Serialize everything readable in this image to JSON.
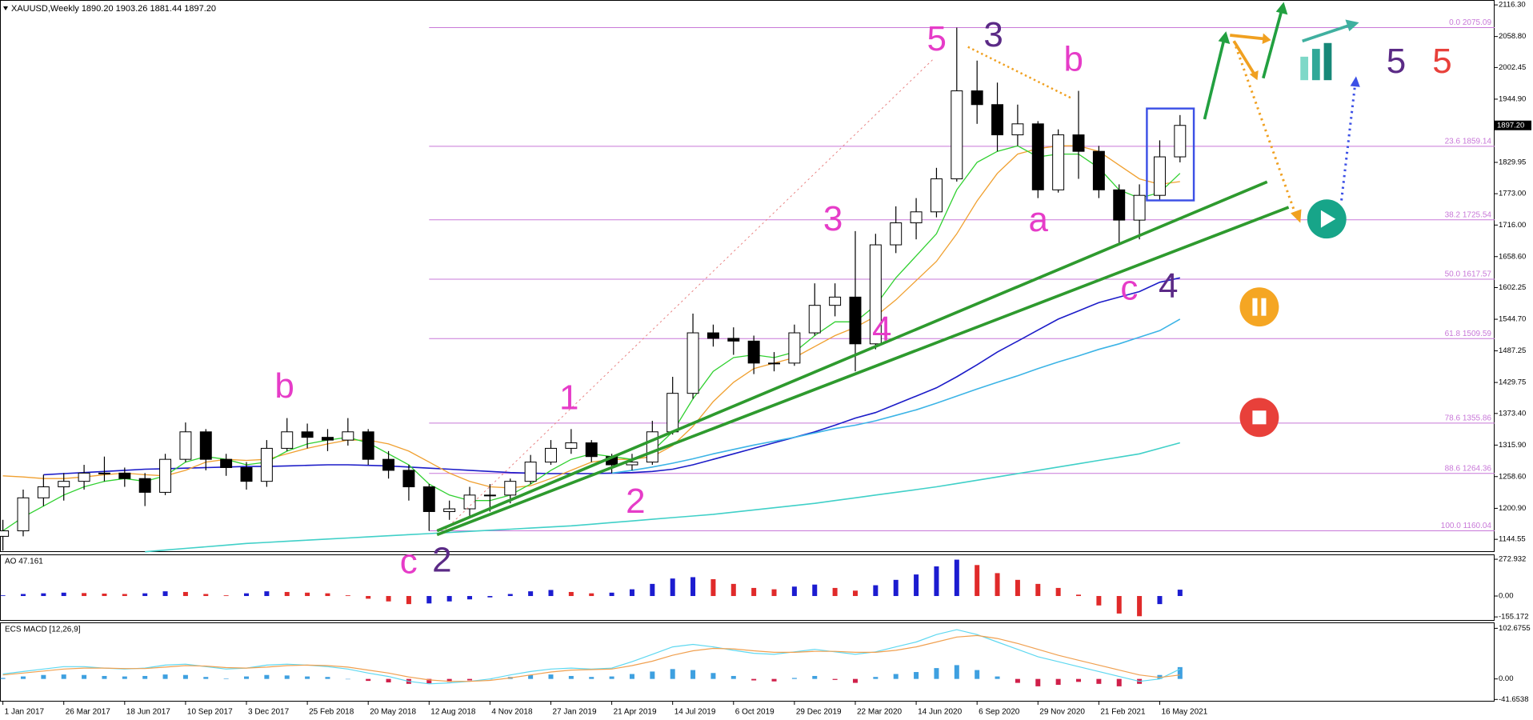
{
  "chart_data": {
    "type": "candlestick",
    "title": "XAUUSD,Weekly  1890.20 1903.26 1881.44 1897.20",
    "x": [
      "2017-01-01",
      "2017-01-29",
      "2017-02-26",
      "2017-03-26",
      "2017-04-23",
      "2017-05-21",
      "2017-06-18",
      "2017-07-16",
      "2017-08-13",
      "2017-09-10",
      "2017-10-08",
      "2017-11-05",
      "2017-12-03",
      "2017-12-31",
      "2018-01-28",
      "2018-02-25",
      "2018-03-25",
      "2018-04-22",
      "2018-05-20",
      "2018-06-17",
      "2018-07-15",
      "2018-08-12",
      "2018-09-09",
      "2018-10-07",
      "2018-11-04",
      "2018-12-02",
      "2018-12-30",
      "2019-01-27",
      "2019-02-24",
      "2019-03-24",
      "2019-04-21",
      "2019-05-19",
      "2019-06-16",
      "2019-07-14",
      "2019-08-11",
      "2019-09-08",
      "2019-10-06",
      "2019-11-03",
      "2019-12-01",
      "2019-12-29",
      "2020-01-26",
      "2020-02-23",
      "2020-03-22",
      "2020-04-19",
      "2020-05-17",
      "2020-06-14",
      "2020-07-12",
      "2020-08-09",
      "2020-09-06",
      "2020-10-04",
      "2020-11-01",
      "2020-11-29",
      "2020-12-27",
      "2021-01-24",
      "2021-02-21",
      "2021-03-21",
      "2021-04-18",
      "2021-05-16",
      "2021-06-13"
    ],
    "open": [
      1150,
      1160,
      1220,
      1240,
      1250,
      1265,
      1265,
      1255,
      1230,
      1290,
      1340,
      1290,
      1275,
      1250,
      1310,
      1340,
      1330,
      1325,
      1340,
      1290,
      1270,
      1240,
      1195,
      1200,
      1225,
      1225,
      1250,
      1285,
      1310,
      1320,
      1295,
      1280,
      1285,
      1340,
      1410,
      1520,
      1510,
      1505,
      1465,
      1465,
      1520,
      1570,
      1585,
      1500,
      1680,
      1720,
      1740,
      1800,
      1960,
      1935,
      1880,
      1900,
      1780,
      1880,
      1850,
      1780,
      1725,
      1770,
      1840
    ],
    "high": [
      1180,
      1235,
      1262,
      1265,
      1280,
      1295,
      1275,
      1265,
      1300,
      1357,
      1345,
      1300,
      1285,
      1325,
      1365,
      1355,
      1345,
      1365,
      1345,
      1305,
      1280,
      1245,
      1215,
      1240,
      1245,
      1255,
      1298,
      1325,
      1345,
      1325,
      1300,
      1300,
      1360,
      1440,
      1555,
      1535,
      1530,
      1515,
      1485,
      1535,
      1610,
      1610,
      1705,
      1700,
      1750,
      1765,
      1820,
      2075,
      2015,
      1975,
      1935,
      1905,
      1890,
      1960,
      1860,
      1790,
      1790,
      1870,
      1916
    ],
    "low": [
      1124,
      1150,
      1205,
      1215,
      1235,
      1250,
      1240,
      1205,
      1225,
      1285,
      1270,
      1260,
      1235,
      1240,
      1305,
      1310,
      1305,
      1315,
      1280,
      1255,
      1215,
      1160,
      1180,
      1185,
      1195,
      1210,
      1245,
      1280,
      1300,
      1285,
      1265,
      1270,
      1280,
      1335,
      1400,
      1495,
      1480,
      1445,
      1450,
      1460,
      1515,
      1550,
      1450,
      1490,
      1665,
      1690,
      1730,
      1795,
      1900,
      1850,
      1860,
      1765,
      1775,
      1800,
      1765,
      1680,
      1690,
      1760,
      1830
    ],
    "close": [
      1160,
      1220,
      1240,
      1250,
      1265,
      1265,
      1255,
      1230,
      1290,
      1340,
      1290,
      1275,
      1250,
      1310,
      1340,
      1330,
      1325,
      1340,
      1290,
      1270,
      1240,
      1195,
      1200,
      1225,
      1225,
      1250,
      1285,
      1310,
      1320,
      1295,
      1280,
      1285,
      1340,
      1410,
      1520,
      1510,
      1505,
      1465,
      1465,
      1520,
      1570,
      1585,
      1500,
      1680,
      1720,
      1740,
      1800,
      1960,
      1935,
      1880,
      1900,
      1780,
      1880,
      1850,
      1780,
      1725,
      1770,
      1840,
      1897.2
    ],
    "up_color": "#ffffff",
    "down_color": "#000000",
    "moving_averages": [
      {
        "color": "#1c1cc8",
        "values": [
          null,
          null,
          1262,
          1264,
          1266,
          1268,
          1270,
          1272,
          1273,
          1274,
          1275,
          1276,
          1277,
          1277,
          1278,
          1279,
          1280,
          1280,
          1279,
          1278,
          1276,
          1274,
          1272,
          1270,
          1268,
          1266,
          1265,
          1264,
          1264,
          1264,
          1265,
          1266,
          1268,
          1272,
          1280,
          1290,
          1300,
          1310,
          1320,
          1330,
          1340,
          1352,
          1365,
          1375,
          1390,
          1405,
          1420,
          1440,
          1462,
          1485,
          1505,
          1525,
          1545,
          1560,
          1575,
          1585,
          1595,
          1612,
          1620
        ]
      },
      {
        "color": "#3cb4e6",
        "values": [
          null,
          null,
          null,
          null,
          null,
          null,
          null,
          null,
          null,
          null,
          null,
          null,
          null,
          null,
          null,
          null,
          null,
          null,
          null,
          null,
          null,
          null,
          null,
          null,
          null,
          null,
          null,
          null,
          null,
          null,
          1265,
          1270,
          1276,
          1283,
          1291,
          1300,
          1308,
          1316,
          1323,
          1330,
          1338,
          1346,
          1352,
          1360,
          1370,
          1380,
          1392,
          1405,
          1418,
          1430,
          1442,
          1455,
          1467,
          1478,
          1490,
          1500,
          1512,
          1524,
          1545
        ]
      },
      {
        "color": "#40d0c8",
        "values": [
          null,
          null,
          null,
          null,
          null,
          null,
          null,
          1122,
          1125,
          1128,
          1131,
          1134,
          1137,
          1139,
          1141,
          1143,
          1145,
          1147,
          1149,
          1151,
          1153,
          1155,
          1157,
          1159,
          1161,
          1163,
          1165,
          1167,
          1169,
          1172,
          1175,
          1178,
          1181,
          1184,
          1187,
          1190,
          1194,
          1198,
          1202,
          1206,
          1210,
          1215,
          1220,
          1225,
          1230,
          1235,
          1240,
          1246,
          1252,
          1258,
          1264,
          1270,
          1276,
          1282,
          1288,
          1294,
          1300,
          1310,
          1320
        ]
      },
      {
        "color": "#f0a030",
        "values": [
          1260,
          1258,
          1255,
          1255,
          1258,
          1262,
          1265,
          1262,
          1260,
          1270,
          1285,
          1290,
          1288,
          1290,
          1300,
          1310,
          1318,
          1325,
          1325,
          1318,
          1305,
          1285,
          1265,
          1250,
          1240,
          1238,
          1242,
          1255,
          1270,
          1285,
          1290,
          1290,
          1295,
          1315,
          1350,
          1395,
          1430,
          1455,
          1465,
          1475,
          1495,
          1515,
          1530,
          1550,
          1580,
          1615,
          1650,
          1700,
          1760,
          1810,
          1845,
          1855,
          1860,
          1860,
          1850,
          1825,
          1800,
          1790,
          1795
        ]
      },
      {
        "color": "#30d030",
        "values": [
          1160,
          1185,
          1205,
          1225,
          1240,
          1250,
          1255,
          1250,
          1260,
          1285,
          1295,
          1290,
          1280,
          1285,
          1305,
          1318,
          1325,
          1330,
          1320,
          1300,
          1280,
          1245,
          1225,
          1215,
          1215,
          1225,
          1245,
          1270,
          1290,
          1300,
          1295,
          1290,
          1305,
          1340,
          1400,
          1450,
          1475,
          1480,
          1475,
          1485,
          1515,
          1540,
          1540,
          1570,
          1620,
          1660,
          1700,
          1780,
          1830,
          1850,
          1860,
          1840,
          1845,
          1845,
          1820,
          1780,
          1765,
          1775,
          1810
        ]
      }
    ],
    "xlim": [
      "2016-12-28",
      "2022-08-21"
    ],
    "ylim": [
      1121.5,
      2125.2
    ],
    "yticks": [
      {
        "value": 2116.3,
        "label": "2116.30"
      },
      {
        "value": 2058.8,
        "label": "2058.80"
      },
      2002.45,
      {
        "value": 1944.9,
        "label": "1944.90"
      },
      1829.95,
      {
        "value": 1773,
        "label": "1773.00"
      },
      {
        "value": 1716,
        "label": "1716.00"
      },
      {
        "value": 1658.6,
        "label": "1658.60"
      },
      1602.25,
      {
        "value": 1544.7,
        "label": "1544.70"
      },
      1487.25,
      1429.75,
      {
        "value": 1373.4,
        "label": "1373.40"
      },
      {
        "value": 1315.9,
        "label": "1315.90"
      },
      {
        "value": 1258.6,
        "label": "1258.60"
      },
      {
        "value": 1200.9,
        "label": "1200.90"
      },
      1144.55
    ],
    "xticks": [
      {
        "value": "2017-01-01",
        "label": "1 Jan 2017"
      },
      {
        "value": "2017-03-26",
        "label": "26 Mar 2017"
      },
      {
        "value": "2017-06-18",
        "label": "18 Jun 2017"
      },
      {
        "value": "2017-09-10",
        "label": "10 Sep 2017"
      },
      {
        "value": "2017-12-03",
        "label": "3 Dec 2017"
      },
      {
        "value": "2018-02-25",
        "label": "25 Feb 2018"
      },
      {
        "value": "2018-05-20",
        "label": "20 May 2018"
      },
      {
        "value": "2018-08-12",
        "label": "12 Aug 2018"
      },
      {
        "value": "2018-11-04",
        "label": "4 Nov 2018"
      },
      {
        "value": "2019-01-27",
        "label": "27 Jan 2019"
      },
      {
        "value": "2019-04-21",
        "label": "21 Apr 2019"
      },
      {
        "value": "2019-07-14",
        "label": "14 Jul 2019"
      },
      {
        "value": "2019-10-06",
        "label": "6 Oct 2019"
      },
      {
        "value": "2019-12-29",
        "label": "29 Dec 2019"
      },
      {
        "value": "2020-03-22",
        "label": "22 Mar 2020"
      },
      {
        "value": "2020-06-14",
        "label": "14 Jun 2020"
      },
      {
        "value": "2020-09-06",
        "label": "6 Sep 2020"
      },
      {
        "value": "2020-11-29",
        "label": "29 Nov 2020"
      },
      {
        "value": "2021-02-21",
        "label": "21 Feb 2021"
      },
      {
        "value": "2021-05-16",
        "label": "16 May 2021"
      }
    ],
    "last_price": {
      "value": 1897.2,
      "label": "1897.20"
    },
    "fib_color": "#c878d8",
    "fib_levels": [
      {
        "value": 2075.09,
        "label": "0.0 2075.09"
      },
      {
        "value": 1859.14,
        "label": "23.6 1859.14"
      },
      {
        "value": 1725.54,
        "label": "38.2 1725.54"
      },
      {
        "value": 1617.57,
        "label": "50.0 1617.57"
      },
      {
        "value": 1509.59,
        "label": "61.8 1509.59"
      },
      {
        "value": 1355.86,
        "label": "78.6 1355.86"
      },
      {
        "value": 1264.36,
        "label": "88.6 1264.36"
      },
      {
        "value": 1160.04,
        "label": "100.0 1160.04"
      }
    ],
    "annotations": [
      "5",
      "3",
      "b",
      "a",
      "c",
      "4",
      "3",
      "4",
      "1",
      "2",
      "c",
      "2",
      "b",
      "5",
      "5"
    ],
    "panels": [
      {
        "type": "bar",
        "title": "AO 47.161",
        "up_color": "#1c1cd0",
        "down_color": "#e02a2a",
        "values": [
          5,
          15,
          20,
          25,
          22,
          18,
          15,
          20,
          35,
          30,
          15,
          5,
          20,
          35,
          30,
          25,
          20,
          5,
          -20,
          -40,
          -60,
          -55,
          -40,
          -25,
          -10,
          15,
          35,
          45,
          30,
          20,
          25,
          50,
          90,
          130,
          140,
          125,
          90,
          60,
          50,
          70,
          85,
          60,
          40,
          80,
          120,
          160,
          220,
          270,
          230,
          170,
          120,
          90,
          60,
          10,
          -70,
          -130,
          -150,
          -60,
          47.161
        ],
        "ylim": [
          -184,
          309
        ],
        "yticks": [
          272.932,
          {
            "value": 0,
            "label": "0.00"
          },
          -155.172
        ]
      },
      {
        "type": "bar",
        "title": "ECS MACD [12,26,9]",
        "up_color": "#3ea0e0",
        "down_color": "#d0204a",
        "values": [
          2,
          5,
          8,
          9,
          8,
          6,
          5,
          6,
          9,
          8,
          4,
          1,
          5,
          8,
          7,
          5,
          4,
          0,
          -4,
          -7,
          -10,
          -9,
          -6,
          -3,
          0,
          4,
          8,
          9,
          6,
          4,
          5,
          10,
          15,
          20,
          18,
          12,
          6,
          -3,
          -5,
          2,
          6,
          -2,
          -8,
          4,
          10,
          14,
          22,
          28,
          18,
          5,
          -8,
          -15,
          -12,
          -6,
          -10,
          -15,
          -10,
          8,
          24
        ],
        "lines": [
          {
            "color": "#5fd8f0",
            "values": [
              10,
              15,
              20,
              25,
              25,
              22,
              20,
              22,
              28,
              30,
              25,
              20,
              22,
              28,
              30,
              28,
              25,
              20,
              12,
              5,
              -5,
              -10,
              -8,
              -5,
              0,
              8,
              15,
              20,
              22,
              20,
              22,
              35,
              50,
              65,
              70,
              65,
              58,
              52,
              50,
              55,
              60,
              55,
              50,
              55,
              65,
              75,
              90,
              100,
              90,
              75,
              60,
              45,
              35,
              25,
              15,
              5,
              -5,
              0,
              20
            ]
          },
          {
            "color": "#f0a050",
            "values": [
              8,
              12,
              16,
              20,
              22,
              22,
              21,
              21,
              24,
              27,
              26,
              23,
              22,
              24,
              27,
              28,
              27,
              24,
              18,
              12,
              4,
              -2,
              -5,
              -5,
              -3,
              2,
              8,
              14,
              18,
              19,
              20,
              27,
              36,
              48,
              57,
              62,
              61,
              57,
              54,
              54,
              56,
              56,
              54,
              54,
              58,
              65,
              75,
              85,
              88,
              82,
              72,
              60,
              48,
              38,
              28,
              18,
              8,
              3,
              8
            ]
          }
        ],
        "ylim": [
          -46,
          114.7
        ],
        "yticks": [
          102.6755,
          {
            "value": 0,
            "label": "0.00"
          },
          -41.6538
        ]
      }
    ]
  }
}
